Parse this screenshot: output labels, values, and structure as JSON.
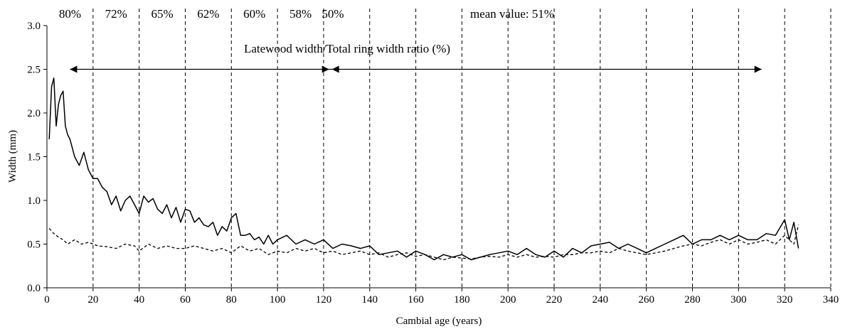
{
  "chart_data": {
    "type": "line",
    "xlabel": "Cambial age (years)",
    "ylabel": "Width (mm)",
    "xlim": [
      0,
      340
    ],
    "ylim": [
      0,
      3.0
    ],
    "xticks": [
      "0",
      "20",
      "40",
      "60",
      "80",
      "100",
      "120",
      "140",
      "160",
      "180",
      "200",
      "220",
      "240",
      "260",
      "280",
      "300",
      "320",
      "340"
    ],
    "yticks": [
      "0.0",
      "0.5",
      "1.0",
      "1.5",
      "2.0",
      "2.5",
      "3.0"
    ],
    "grid": "vertical dashed lines every 20 years (20-340)",
    "period_labels": [
      {
        "x": 10,
        "text": "80%"
      },
      {
        "x": 30,
        "text": "72%"
      },
      {
        "x": 50,
        "text": "65%"
      },
      {
        "x": 70,
        "text": "62%"
      },
      {
        "x": 90,
        "text": "60%"
      },
      {
        "x": 110,
        "text": "58%"
      },
      {
        "x": 124,
        "text": "50%"
      }
    ],
    "mean_label": "mean value: 51%",
    "ratio_title": "Latewood width/Total ring width ratio (%)",
    "arrow_span": [
      10,
      310
    ],
    "arrow_split": 123,
    "series": [
      {
        "style": "solid",
        "x": [
          1,
          2,
          3,
          4,
          5,
          6,
          7,
          8,
          9,
          10,
          12,
          14,
          16,
          18,
          20,
          22,
          24,
          26,
          28,
          30,
          32,
          34,
          36,
          38,
          40,
          42,
          44,
          46,
          48,
          50,
          52,
          54,
          56,
          58,
          60,
          62,
          64,
          66,
          68,
          70,
          72,
          74,
          76,
          78,
          80,
          82,
          84,
          86,
          88,
          90,
          92,
          94,
          96,
          98,
          100,
          104,
          108,
          112,
          116,
          120,
          124,
          128,
          132,
          136,
          140,
          144,
          148,
          152,
          156,
          160,
          164,
          168,
          172,
          176,
          180,
          184,
          188,
          192,
          196,
          200,
          204,
          208,
          212,
          216,
          220,
          224,
          228,
          232,
          236,
          240,
          244,
          248,
          252,
          256,
          260,
          264,
          268,
          272,
          276,
          280,
          284,
          288,
          292,
          296,
          300,
          304,
          308,
          312,
          316,
          320,
          322,
          324,
          326
        ],
        "values": [
          1.7,
          2.3,
          2.4,
          1.85,
          2.1,
          2.2,
          2.25,
          1.85,
          1.75,
          1.7,
          1.5,
          1.4,
          1.55,
          1.35,
          1.25,
          1.25,
          1.15,
          1.1,
          0.95,
          1.05,
          0.88,
          1.0,
          1.05,
          0.95,
          0.85,
          1.05,
          0.98,
          1.02,
          0.9,
          0.85,
          0.95,
          0.8,
          0.92,
          0.75,
          0.9,
          0.88,
          0.75,
          0.8,
          0.72,
          0.7,
          0.75,
          0.6,
          0.7,
          0.65,
          0.8,
          0.85,
          0.6,
          0.6,
          0.62,
          0.55,
          0.58,
          0.5,
          0.6,
          0.5,
          0.55,
          0.6,
          0.5,
          0.55,
          0.5,
          0.55,
          0.45,
          0.5,
          0.48,
          0.45,
          0.48,
          0.38,
          0.4,
          0.42,
          0.35,
          0.42,
          0.38,
          0.32,
          0.38,
          0.35,
          0.38,
          0.32,
          0.35,
          0.38,
          0.4,
          0.42,
          0.38,
          0.45,
          0.38,
          0.35,
          0.42,
          0.35,
          0.45,
          0.4,
          0.48,
          0.5,
          0.52,
          0.45,
          0.5,
          0.45,
          0.4,
          0.45,
          0.5,
          0.55,
          0.6,
          0.5,
          0.55,
          0.55,
          0.6,
          0.55,
          0.6,
          0.55,
          0.55,
          0.62,
          0.6,
          0.78,
          0.55,
          0.75,
          0.45
        ]
      },
      {
        "style": "dashed",
        "x": [
          1,
          3,
          5,
          7,
          9,
          12,
          15,
          18,
          22,
          26,
          30,
          34,
          38,
          40,
          44,
          48,
          52,
          56,
          60,
          64,
          68,
          72,
          76,
          80,
          84,
          88,
          92,
          96,
          100,
          104,
          108,
          112,
          116,
          120,
          124,
          128,
          132,
          136,
          140,
          144,
          148,
          152,
          156,
          160,
          164,
          168,
          172,
          176,
          180,
          184,
          188,
          192,
          196,
          200,
          204,
          208,
          212,
          216,
          220,
          224,
          228,
          232,
          236,
          240,
          244,
          248,
          252,
          256,
          260,
          264,
          268,
          272,
          276,
          280,
          284,
          288,
          292,
          296,
          300,
          304,
          308,
          312,
          316,
          320,
          324,
          326
        ],
        "values": [
          0.68,
          0.62,
          0.58,
          0.55,
          0.5,
          0.55,
          0.5,
          0.52,
          0.48,
          0.47,
          0.45,
          0.5,
          0.48,
          0.42,
          0.5,
          0.45,
          0.48,
          0.45,
          0.45,
          0.48,
          0.45,
          0.42,
          0.45,
          0.4,
          0.48,
          0.42,
          0.45,
          0.38,
          0.42,
          0.4,
          0.45,
          0.42,
          0.45,
          0.4,
          0.42,
          0.38,
          0.4,
          0.42,
          0.38,
          0.4,
          0.35,
          0.38,
          0.4,
          0.36,
          0.38,
          0.35,
          0.32,
          0.35,
          0.34,
          0.33,
          0.35,
          0.36,
          0.35,
          0.38,
          0.35,
          0.38,
          0.35,
          0.36,
          0.35,
          0.38,
          0.38,
          0.4,
          0.4,
          0.42,
          0.4,
          0.45,
          0.42,
          0.4,
          0.38,
          0.4,
          0.42,
          0.45,
          0.48,
          0.5,
          0.48,
          0.52,
          0.55,
          0.5,
          0.55,
          0.5,
          0.52,
          0.55,
          0.5,
          0.6,
          0.5,
          0.72
        ]
      }
    ]
  }
}
